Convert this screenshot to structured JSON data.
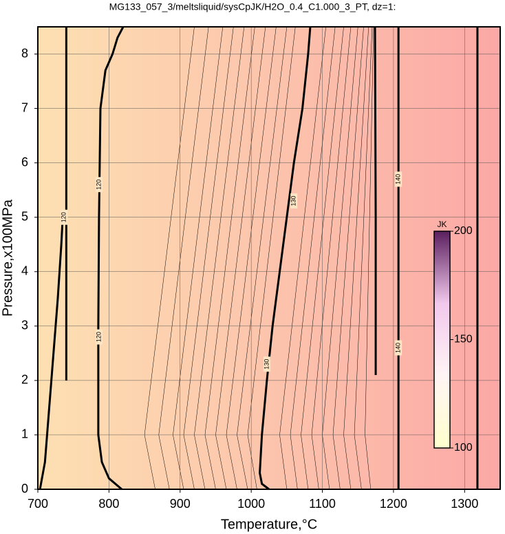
{
  "chart_data": {
    "type": "contour",
    "title": "MG133_057_3/meltsliquid/sysCpJK/H2O_0.4_C1.000_3_PT, dz=1:",
    "x_label": "Temperature,°C",
    "y_label": "Pressure,x100MPa",
    "xlim": [
      700,
      1350
    ],
    "ylim": [
      0,
      8.5
    ],
    "xticks": [
      700,
      800,
      900,
      1000,
      1100,
      1200,
      1300
    ],
    "yticks": [
      0,
      1,
      2,
      3,
      4,
      5,
      6,
      7,
      8
    ],
    "grid": true,
    "background_colors": [
      "#fde0b2",
      "#fca8a6"
    ],
    "contours": [
      {
        "level": 120,
        "x": [
          703,
          710,
          716,
          722,
          728,
          733,
          735
        ],
        "y": [
          0,
          0.5,
          1.5,
          2.5,
          3.5,
          4.5,
          5.0
        ]
      },
      {
        "level": 120,
        "x": [
          818,
          800,
          790,
          785,
          785,
          786,
          788,
          795,
          805,
          812,
          820
        ],
        "y": [
          0,
          0.2,
          0.5,
          1,
          3,
          5,
          7,
          7.7,
          8.0,
          8.3,
          8.5
        ]
      },
      {
        "level": 130,
        "x": [
          1025,
          1015,
          1012,
          1015,
          1022,
          1030,
          1040,
          1050,
          1060,
          1072,
          1080,
          1083
        ],
        "y": [
          0,
          0.1,
          0.3,
          1,
          2,
          3,
          4,
          5,
          6,
          7,
          8,
          8.5
        ]
      },
      {
        "level": 140,
        "x": [
          1207,
          1207
        ],
        "y": [
          0,
          8.5
        ]
      },
      {
        "level": 140,
        "x": [
          1175,
          1175,
          1174
        ],
        "y": [
          2.1,
          5,
          8.5
        ]
      },
      {
        "level": 150,
        "x": [
          1318,
          1318
        ],
        "y": [
          0,
          8.5
        ]
      },
      {
        "level": 120,
        "x": [
          740,
          740,
          740
        ],
        "y": [
          2.0,
          5,
          8.5
        ]
      }
    ],
    "thin_contours": {
      "y": [
        0,
        1,
        8.5
      ],
      "x": [
        [
          865,
          850,
          920
        ],
        [
          885,
          870,
          940
        ],
        [
          905,
          890,
          960
        ],
        [
          920,
          905,
          975
        ],
        [
          935,
          920,
          990
        ],
        [
          950,
          935,
          1005
        ],
        [
          965,
          950,
          1020
        ],
        [
          980,
          965,
          1035
        ],
        [
          995,
          980,
          1050
        ],
        [
          1008,
          995,
          1062
        ],
        [
          1050,
          1040,
          1105
        ],
        [
          1065,
          1055,
          1118
        ],
        [
          1080,
          1070,
          1130
        ],
        [
          1095,
          1085,
          1140
        ],
        [
          1110,
          1100,
          1150
        ],
        [
          1125,
          1115,
          1158
        ],
        [
          1140,
          1130,
          1165
        ],
        [
          1155,
          1145,
          1170
        ],
        [
          1168,
          1160,
          1172
        ]
      ]
    },
    "contour_labels": [
      {
        "level": 120,
        "x": 737,
        "y": 5.0
      },
      {
        "level": 120,
        "x": 786,
        "y": 5.6
      },
      {
        "level": 120,
        "x": 786,
        "y": 2.8
      },
      {
        "level": 130,
        "x": 1060,
        "y": 5.3
      },
      {
        "level": 130,
        "x": 1022,
        "y": 2.3
      },
      {
        "level": 140,
        "x": 1207,
        "y": 5.7
      },
      {
        "level": 140,
        "x": 1207,
        "y": 2.6
      }
    ],
    "colorbar": {
      "label": "JK",
      "lim": [
        100,
        200
      ],
      "ticks": [
        100,
        150,
        200
      ],
      "colors": [
        "#ffffcc",
        "#fff4f4",
        "#f2c8ec",
        "#5a1f5e"
      ]
    }
  }
}
